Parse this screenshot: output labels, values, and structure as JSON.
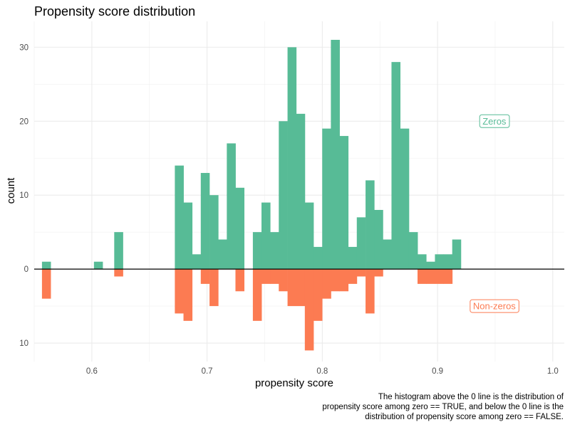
{
  "chart_data": {
    "type": "bar",
    "title": "Propensity score distribution",
    "xlabel": "propensity score",
    "ylabel": "count",
    "xlim": [
      0.55,
      1.01
    ],
    "ylim": [
      -12.5,
      33.5
    ],
    "grid": true,
    "bin_width": 0.00752,
    "x_ticks": [
      0.6,
      0.7,
      0.8,
      0.9,
      1.0
    ],
    "x_tick_labels": [
      "0.6",
      "0.7",
      "0.8",
      "0.9",
      "1.0"
    ],
    "y_ticks": [
      30,
      20,
      10,
      0,
      -10
    ],
    "y_tick_labels": [
      "30",
      "20",
      "10",
      "0",
      "10"
    ],
    "series": [
      {
        "name": "Zeros",
        "color": "#57bb96",
        "x": [
          0.5605,
          0.6056,
          0.6232,
          0.6758,
          0.6833,
          0.6908,
          0.6983,
          0.7059,
          0.7134,
          0.7209,
          0.7284,
          0.7435,
          0.751,
          0.7585,
          0.766,
          0.7736,
          0.7811,
          0.7886,
          0.7961,
          0.8037,
          0.8112,
          0.8187,
          0.8262,
          0.8337,
          0.8413,
          0.8488,
          0.8563,
          0.8638,
          0.8714,
          0.8789,
          0.8864,
          0.8939,
          0.9015,
          0.909,
          0.9165,
          0.924,
          0.9316,
          0.9391,
          0.9466,
          0.9993
        ],
        "values": [
          1,
          1,
          5,
          14,
          9,
          2,
          13,
          10,
          4,
          17,
          11,
          5,
          9,
          5,
          20,
          30,
          21,
          9,
          3,
          19,
          31,
          18,
          3,
          7,
          12,
          8,
          4,
          28,
          19,
          5,
          2,
          1,
          2,
          2,
          4,
          0,
          0,
          0,
          0,
          0
        ]
      },
      {
        "name": "Non-zeros",
        "color": "#fc7b52",
        "x": [
          0.5605,
          0.6232,
          0.6758,
          0.6833,
          0.6983,
          0.7059,
          0.7284,
          0.7435,
          0.751,
          0.7585,
          0.766,
          0.7736,
          0.7811,
          0.7886,
          0.7961,
          0.8037,
          0.8112,
          0.8187,
          0.8262,
          0.8337,
          0.8413,
          0.8488,
          0.8864,
          0.8939,
          0.9015,
          0.909
        ],
        "values": [
          -4,
          -1,
          -6,
          -7,
          -2,
          -5,
          -3,
          -7,
          -2,
          -2,
          -3,
          -5,
          -5,
          -11,
          -7,
          -4,
          -3,
          -3,
          -2,
          -1,
          -6,
          -1,
          -2,
          -2,
          -2,
          -2
        ]
      }
    ],
    "annotations": [
      {
        "text": "Zeros",
        "x": 0.9493,
        "y": 20,
        "color": "#57bb96"
      },
      {
        "text": "Non-zeros",
        "x": 0.9493,
        "y": -5,
        "color": "#fc7b52"
      }
    ],
    "caption_lines": [
      "The histogram above the 0 line is the distribution of",
      "propensity score among zero == TRUE, and below the 0 line is the",
      "distribution of propensity score among zero == FALSE."
    ]
  }
}
